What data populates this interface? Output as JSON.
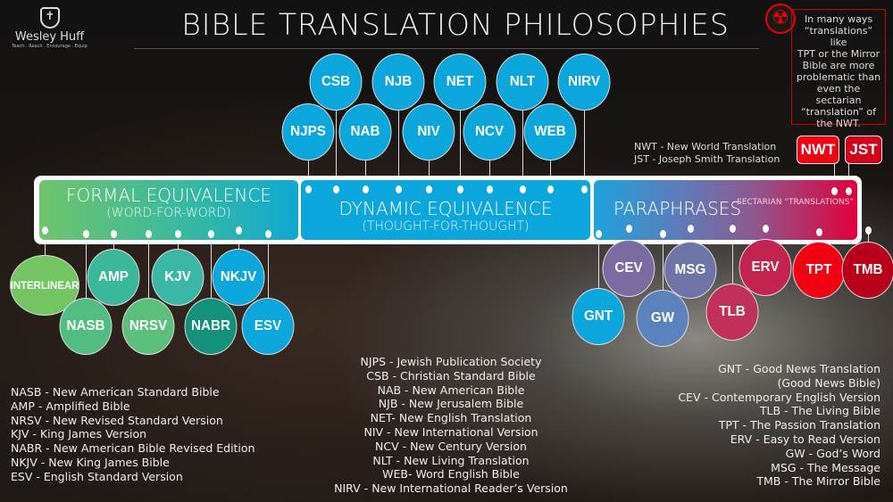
{
  "logo": {
    "name": "Wesley Huff",
    "tagline": "Teach . Reach . Encourage . Equip"
  },
  "title": "BIBLE TRANSLATION PHILOSOPHIES",
  "warning": {
    "icon": "radiation-icon",
    "text_lines": [
      "In many ways",
      "“translations” like",
      "TPT or the Mirror",
      "Bible are more",
      "problematic than",
      "even the",
      "sectarian",
      "“translation” of",
      "the NWT."
    ]
  },
  "sectarian_legend": [
    "NWT - New World Translation",
    "JST - Joseph Smith Translation"
  ],
  "categories": {
    "formal": {
      "heading": "FORMAL EQUIVALENCE",
      "sub": "(WORD-FOR-WORD)"
    },
    "dynamic": {
      "heading": "DYNAMIC EQUIVALENCE",
      "sub": "(THOUGHT-FOR-THOUGHT)"
    },
    "paraphrases": {
      "heading": "PARAPHRASES",
      "sectarian": "SECTARIAN “TRANSLATIONS”"
    }
  },
  "bubbles": [
    {
      "label": "CSB",
      "color": "#0aa6dc"
    },
    {
      "label": "NJB",
      "color": "#0aa6dc"
    },
    {
      "label": "NET",
      "color": "#0aa6dc"
    },
    {
      "label": "NLT",
      "color": "#0aa6dc"
    },
    {
      "label": "NIRV",
      "color": "#0aa6dc"
    },
    {
      "label": "NJPS",
      "color": "#0aa6dc"
    },
    {
      "label": "NAB",
      "color": "#0aa6dc"
    },
    {
      "label": "NIV",
      "color": "#0aa6dc"
    },
    {
      "label": "NCV",
      "color": "#0aa6dc"
    },
    {
      "label": "WEB",
      "color": "#0aa6dc"
    },
    {
      "label": "INTERLINEAR",
      "color": "#72c560"
    },
    {
      "label": "AMP",
      "color": "#3bb79a"
    },
    {
      "label": "KJV",
      "color": "#3ab7a5"
    },
    {
      "label": "NKJV",
      "color": "#0aa6dc"
    },
    {
      "label": "NASB",
      "color": "#52bd80"
    },
    {
      "label": "NRSV",
      "color": "#5dc07a"
    },
    {
      "label": "NABR",
      "color": "#13917a"
    },
    {
      "label": "ESV",
      "color": "#0aa6dc"
    },
    {
      "label": "CEV",
      "color": "#7a6ba0"
    },
    {
      "label": "MSG",
      "color": "#6f74a6"
    },
    {
      "label": "ERV",
      "color": "#c2244f"
    },
    {
      "label": "TPT",
      "color": "#f00010"
    },
    {
      "label": "TMB",
      "color": "#b8001a"
    },
    {
      "label": "GNT",
      "color": "#0aa6dc"
    },
    {
      "label": "GW",
      "color": "#5a82bd"
    },
    {
      "label": "TLB",
      "color": "#c0305a"
    }
  ],
  "sectarian": [
    {
      "label": "NWT",
      "color": "#f00010"
    },
    {
      "label": "JST",
      "color": "#d00018"
    }
  ],
  "legends": {
    "formal": [
      "NASB - New American Standard Bible",
      "AMP - Amplified Bible",
      "NRSV - New Revised Standard Version",
      "KJV - King James Version",
      "NABR - New American Bible Revised Edition",
      "NKJV - New King James Bible",
      "ESV - English Standard Version"
    ],
    "dynamic": [
      "NJPS - Jewish Publication Society",
      "CSB - Christian Standard Bible",
      "NAB - New American Bible",
      "NJB - New Jerusalem Bible",
      "NET- New English Translation",
      "NIV - New International Version",
      "NCV - New Century Version",
      "NLT - New Living Translation",
      "WEB- Word English Bible",
      "NIRV - New International Reader’s Version"
    ],
    "paraphrases": [
      "GNT - Good News Translation",
      "(Good News Bible)",
      "CEV - Contemporary English Version",
      "TLB - The Living Bible",
      "TPT - The Passion Translation",
      "ERV - Easy to Read Version",
      "GW - God’s Word",
      "MSG - The Message",
      "TMB - The Mirror Bible"
    ]
  }
}
